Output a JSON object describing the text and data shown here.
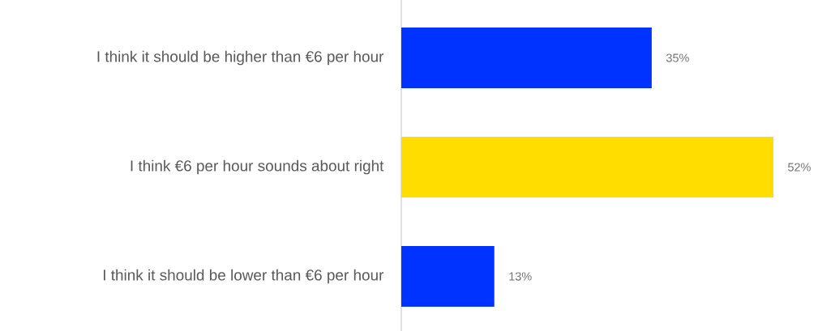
{
  "chart_data": {
    "type": "bar",
    "orientation": "horizontal",
    "categories": [
      "I think it should be higher than €6 per hour",
      "I think €6 per hour sounds about right",
      "I think it should be lower than €6 per hour"
    ],
    "values": [
      35,
      52,
      13
    ],
    "colors": [
      "#0033ff",
      "#ffdd00",
      "#0033ff"
    ],
    "value_labels": [
      "35%",
      "52%",
      "13%"
    ]
  }
}
